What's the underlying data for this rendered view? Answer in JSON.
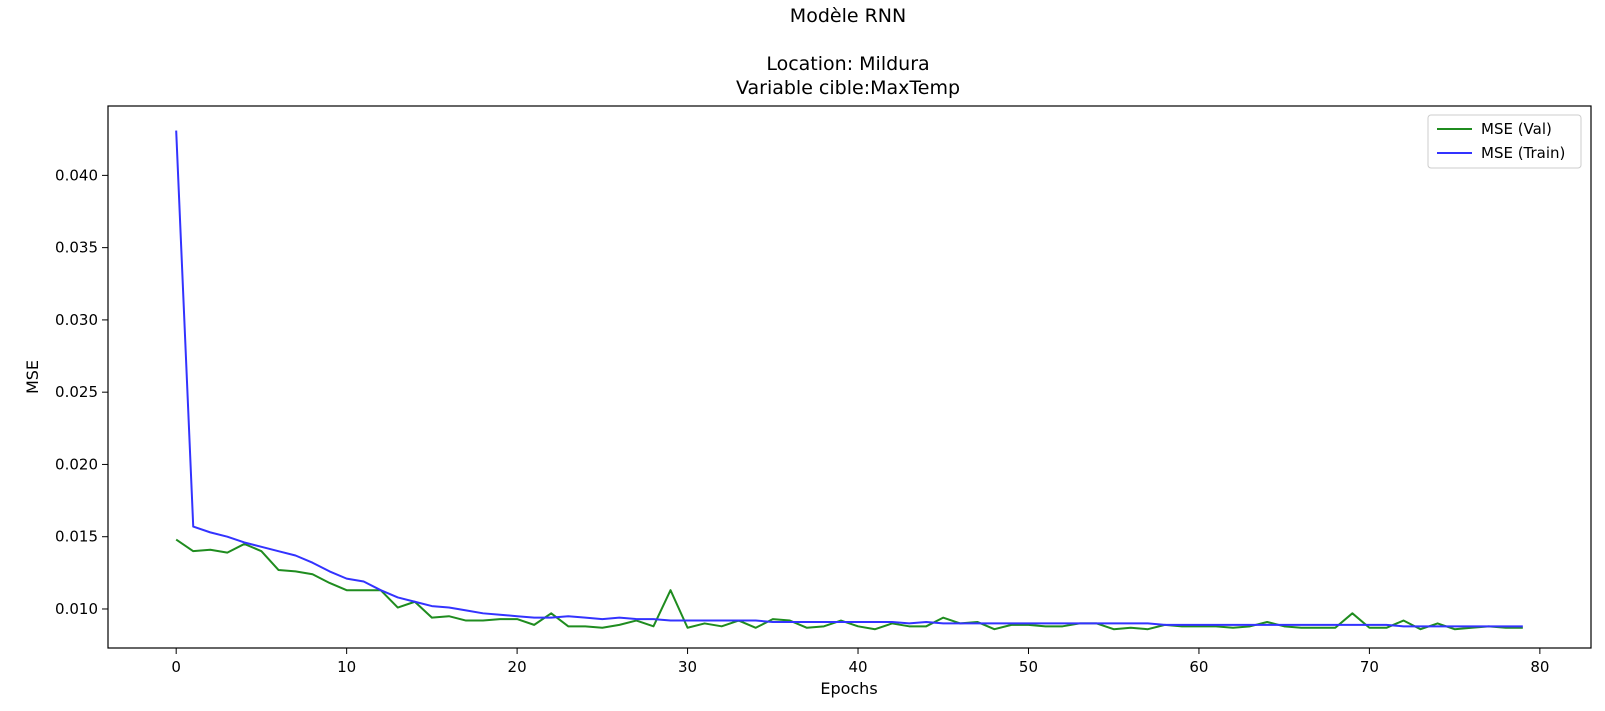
{
  "chart_data": {
    "type": "line",
    "title": "Modèle RNN",
    "subtitle_1": "Location: Mildura",
    "subtitle_2": "Variable cible:MaxTemp",
    "xlabel": "Epochs",
    "ylabel": "MSE",
    "xlim": [
      -4,
      83
    ],
    "ylim": [
      0.0073,
      0.0448
    ],
    "x_ticks": [
      0,
      10,
      20,
      30,
      40,
      50,
      60,
      70,
      80
    ],
    "y_ticks": [
      0.01,
      0.015,
      0.02,
      0.025,
      0.03,
      0.035,
      0.04
    ],
    "grid": false,
    "legend_position": "top-right",
    "x": [
      0,
      1,
      2,
      3,
      4,
      5,
      6,
      7,
      8,
      9,
      10,
      11,
      12,
      13,
      14,
      15,
      16,
      17,
      18,
      19,
      20,
      21,
      22,
      23,
      24,
      25,
      26,
      27,
      28,
      29,
      30,
      31,
      32,
      33,
      34,
      35,
      36,
      37,
      38,
      39,
      40,
      41,
      42,
      43,
      44,
      45,
      46,
      47,
      48,
      49,
      50,
      51,
      52,
      53,
      54,
      55,
      56,
      57,
      58,
      59,
      60,
      61,
      62,
      63,
      64,
      65,
      66,
      67,
      68,
      69,
      70,
      71,
      72,
      73,
      74,
      75,
      76,
      77,
      78,
      79
    ],
    "series": [
      {
        "name": "MSE (Val)",
        "color": "#1f8c1f",
        "values": [
          0.0148,
          0.014,
          0.0141,
          0.0139,
          0.0145,
          0.014,
          0.0127,
          0.0126,
          0.0124,
          0.0118,
          0.0113,
          0.0113,
          0.0113,
          0.0101,
          0.0105,
          0.0094,
          0.0095,
          0.0092,
          0.0092,
          0.0093,
          0.0093,
          0.0089,
          0.0097,
          0.0088,
          0.0088,
          0.0087,
          0.0089,
          0.0092,
          0.0088,
          0.0113,
          0.0087,
          0.009,
          0.0088,
          0.0092,
          0.0087,
          0.0093,
          0.0092,
          0.0087,
          0.0088,
          0.0092,
          0.0088,
          0.0086,
          0.009,
          0.0088,
          0.0088,
          0.0094,
          0.009,
          0.0091,
          0.0086,
          0.0089,
          0.0089,
          0.0088,
          0.0088,
          0.009,
          0.009,
          0.0086,
          0.0087,
          0.0086,
          0.0089,
          0.0088,
          0.0088,
          0.0088,
          0.0087,
          0.0088,
          0.0091,
          0.0088,
          0.0087,
          0.0087,
          0.0087,
          0.0097,
          0.0087,
          0.0087,
          0.0092,
          0.0086,
          0.009,
          0.0086,
          0.0087,
          0.0088,
          0.0087,
          0.0087
        ]
      },
      {
        "name": "MSE (Train)",
        "color": "#3333ff",
        "values": [
          0.0431,
          0.0157,
          0.0153,
          0.015,
          0.0146,
          0.0143,
          0.014,
          0.0137,
          0.0132,
          0.0126,
          0.0121,
          0.0119,
          0.0113,
          0.0108,
          0.0105,
          0.0102,
          0.0101,
          0.0099,
          0.0097,
          0.0096,
          0.0095,
          0.0094,
          0.0094,
          0.0095,
          0.0094,
          0.0093,
          0.0094,
          0.0093,
          0.0093,
          0.0092,
          0.0092,
          0.0092,
          0.0092,
          0.0092,
          0.0092,
          0.0091,
          0.0091,
          0.0091,
          0.0091,
          0.0091,
          0.0091,
          0.0091,
          0.0091,
          0.009,
          0.0091,
          0.009,
          0.009,
          0.009,
          0.009,
          0.009,
          0.009,
          0.009,
          0.009,
          0.009,
          0.009,
          0.009,
          0.009,
          0.009,
          0.0089,
          0.0089,
          0.0089,
          0.0089,
          0.0089,
          0.0089,
          0.0089,
          0.0089,
          0.0089,
          0.0089,
          0.0089,
          0.0089,
          0.0089,
          0.0089,
          0.0088,
          0.0088,
          0.0088,
          0.0088,
          0.0088,
          0.0088,
          0.0088,
          0.0088
        ]
      }
    ]
  }
}
